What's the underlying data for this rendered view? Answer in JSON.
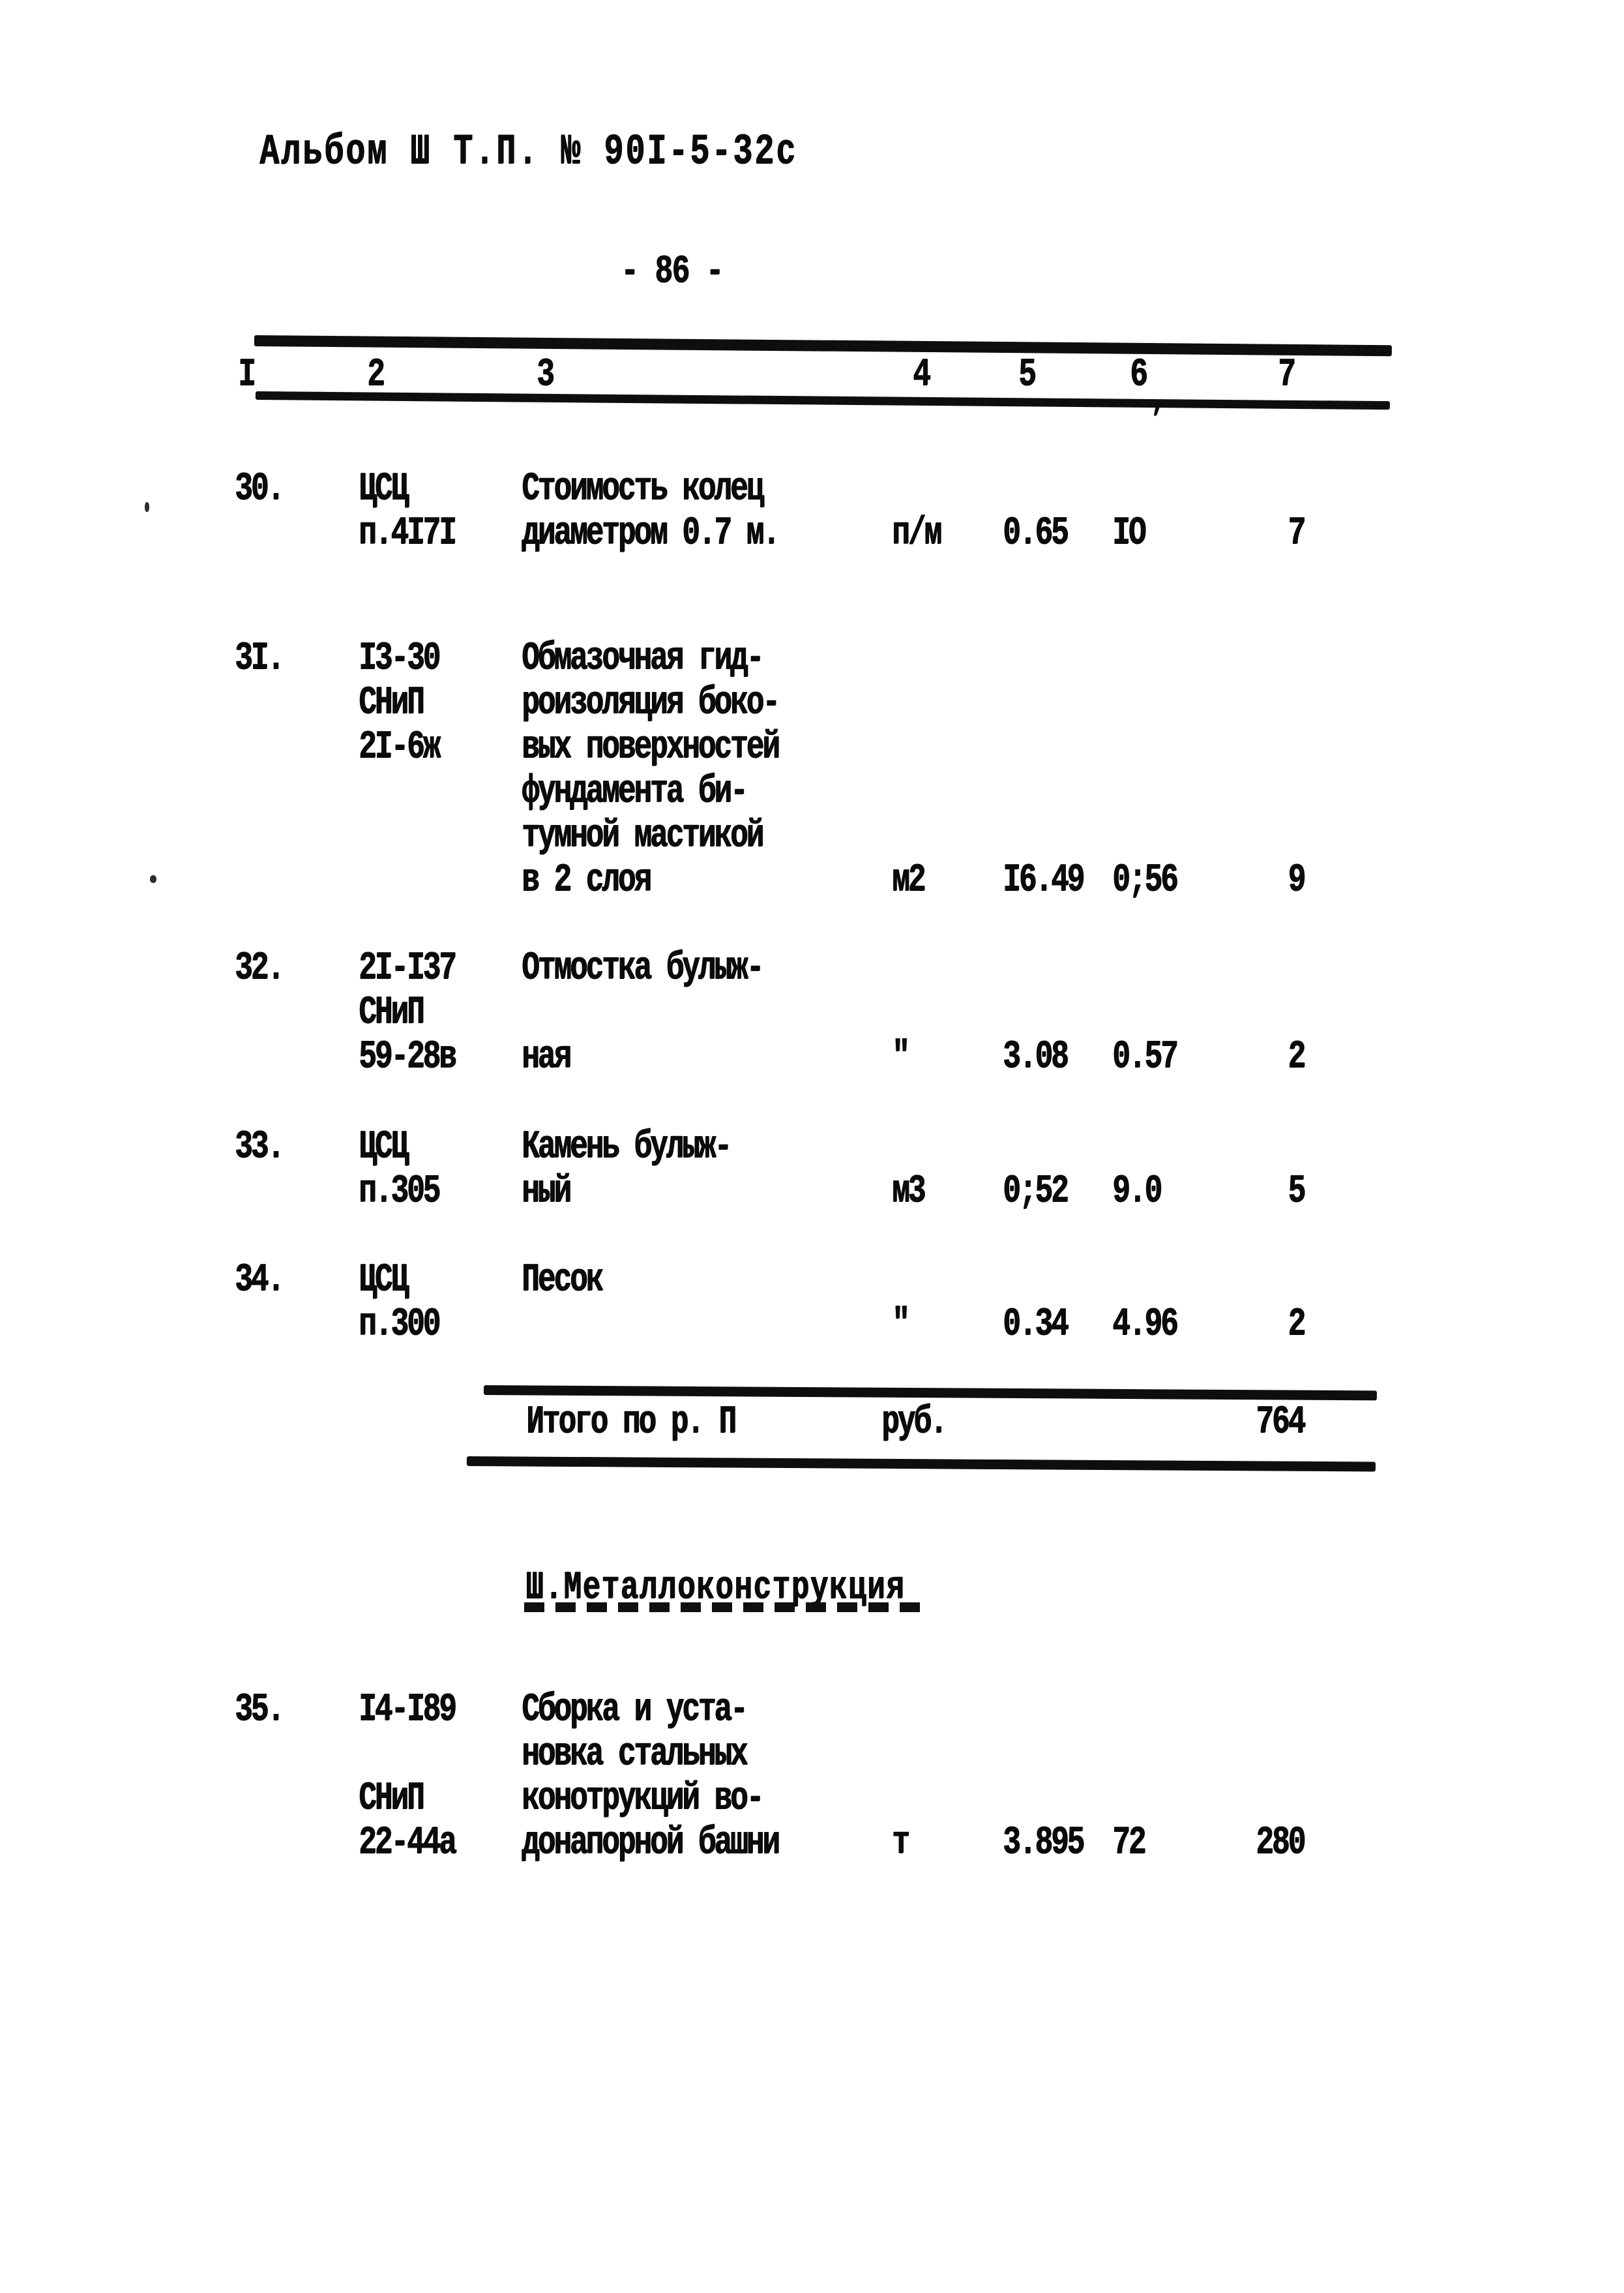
{
  "page": {
    "album_ref": "Альбом Ш Т.П. № 90I-5-32с",
    "page_number": "- 86 -"
  },
  "table": {
    "column_headers": [
      "I",
      "2",
      "3",
      "4",
      "5",
      "6",
      "7"
    ],
    "stray_mark": ",",
    "rows": [
      {
        "no": "30.",
        "lines": [
          {
            "c2": "ЦСЦ",
            "c3": "Стоимость колец"
          },
          {
            "c2": "п.4I7I",
            "c3": "диаметром 0.7 м.",
            "c4": "п/м",
            "c5": "0.65",
            "c6": "IO",
            "c7": "7"
          }
        ]
      },
      {
        "no": "3I.",
        "lines": [
          {
            "c2": "I3-30",
            "c3": "Обмазочная гид-"
          },
          {
            "c2": "СНиП",
            "c3": "роизоляция боко-"
          },
          {
            "c2": "2I-6ж",
            "c3": "вых поверхностей"
          },
          {
            "c3": "фундамента би-"
          },
          {
            "c3": "тумной мастикой"
          },
          {
            "c3": "в 2 слоя",
            "c4": "м2",
            "c5": "I6.49",
            "c6": "0;56",
            "c7": "9"
          }
        ]
      },
      {
        "no": "32.",
        "lines": [
          {
            "c2": "2I-I37",
            "c3": "Отмостка булыж-"
          },
          {
            "c2": "СНиП"
          },
          {
            "c2": "59-28в",
            "c3": "ная",
            "c4": "\"",
            "c5": "3.08",
            "c6": "0.57",
            "c7": "2"
          }
        ]
      },
      {
        "no": "33.",
        "lines": [
          {
            "c2": "ЦСЦ",
            "c3": "Камень булыж-"
          },
          {
            "c2": "п.305",
            "c3": "ный",
            "c4": "м3",
            "c5": "0;52",
            "c6": "9.0",
            "c7": "5"
          }
        ]
      },
      {
        "no": "34.",
        "lines": [
          {
            "c2": "ЦСЦ",
            "c3": "Песок"
          },
          {
            "c2": "п.300",
            "c4": "\"",
            "c5": "0.34",
            "c6": "4.96",
            "c7": "2"
          }
        ]
      },
      {
        "no": "35.",
        "lines": [
          {
            "c2": "I4-I89",
            "c3": "Сборка и уста-"
          },
          {
            "c3": "новка стальных"
          },
          {
            "c2": "СНиП",
            "c3": "конотрукций во-"
          },
          {
            "c2": "22-44а",
            "c3": "донапорной башни",
            "c4": "т",
            "c5": "3.895",
            "c6": "72",
            "c7": "280"
          }
        ]
      }
    ],
    "totals": {
      "label": "Итого по р. П",
      "unit": "руб.",
      "value": "764"
    },
    "section_heading": "Ш.Металлоконструкция"
  }
}
